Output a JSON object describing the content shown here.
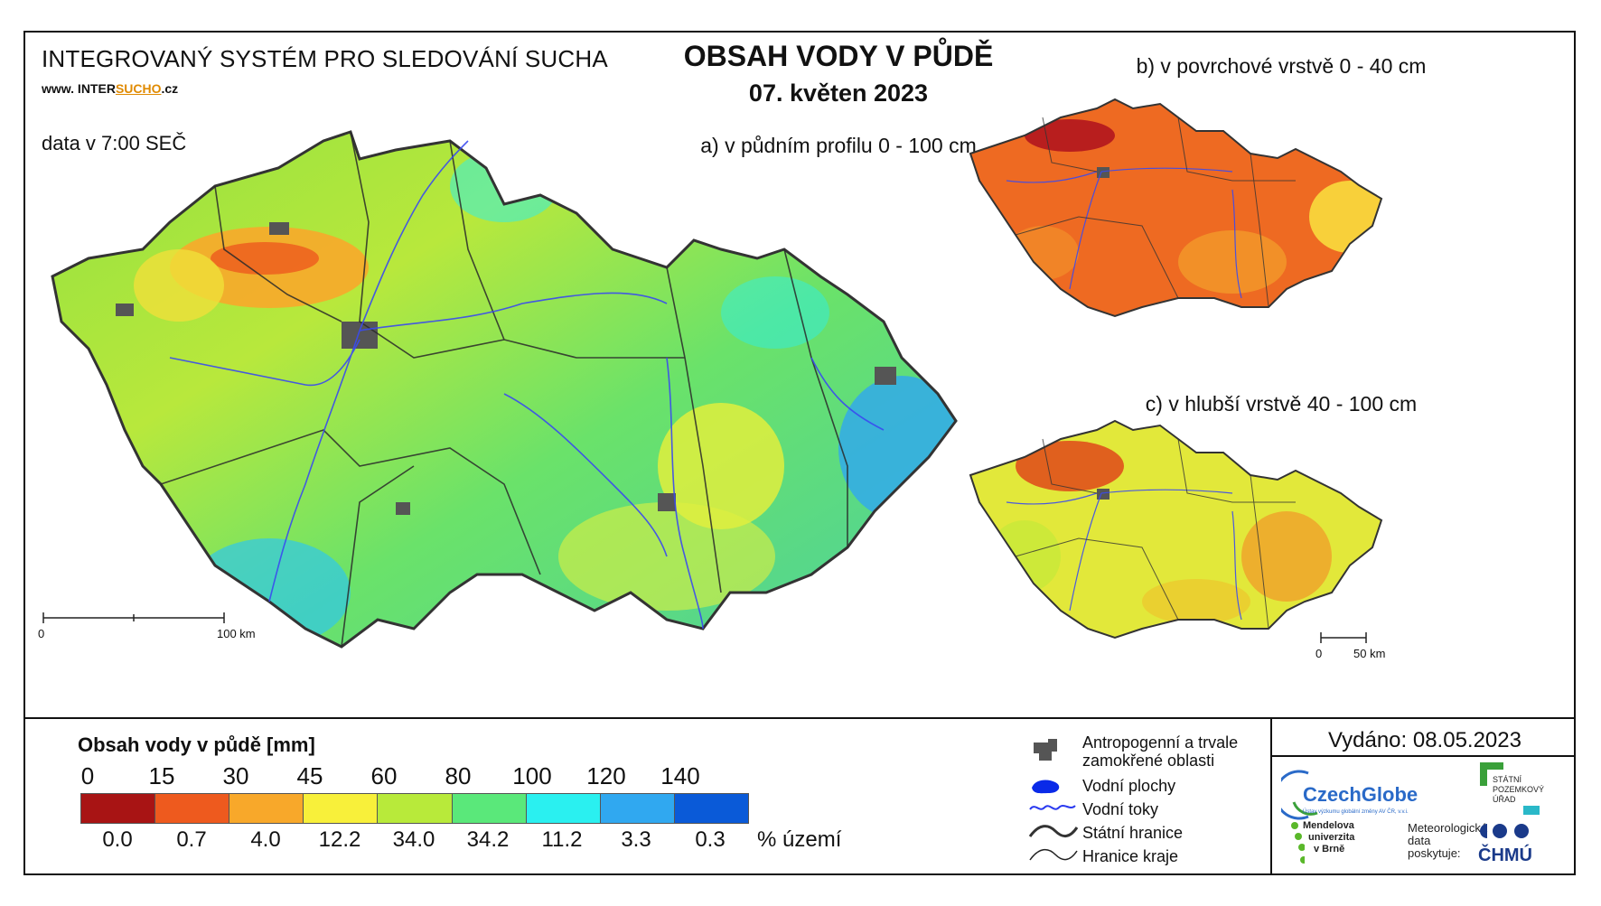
{
  "header": {
    "system_title": "INTEGROVANÝ SYSTÉM PRO SLEDOVÁNÍ SUCHA",
    "website_prefix": "www. INTER",
    "website_highlight": "SUCHO",
    "website_suffix": ".cz",
    "data_time": "data v 7:00 SEČ",
    "main_title": "OBSAH VODY V PŮDĚ",
    "date": "07. květen 2023"
  },
  "maps": {
    "a": {
      "title": "a) v půdním profilu 0 - 100 cm",
      "scale_start": "0",
      "scale_end": "100 km"
    },
    "b": {
      "title": "b) v povrchové vrstvě 0 - 40 cm"
    },
    "c": {
      "title": "c) v hlubší vrstvě 40 - 100 cm",
      "scale_start": "0",
      "scale_end": "50 km"
    }
  },
  "legend": {
    "title": "Obsah vody v půdě  [mm]",
    "ticks": [
      "0",
      "15",
      "30",
      "45",
      "60",
      "80",
      "100",
      "120",
      "140"
    ],
    "colors": [
      "#a81414",
      "#ee5a1e",
      "#f8a82a",
      "#f8f03a",
      "#b8ea3a",
      "#5ae87a",
      "#2af0f0",
      "#30a8f0",
      "#0a5ad8"
    ],
    "percentages": [
      "0.0",
      "0.7",
      "4.0",
      "12.2",
      "34.0",
      "34.2",
      "11.2",
      "3.3",
      "0.3"
    ],
    "percent_unit": "% území",
    "items": [
      {
        "label_1": "Antropogenní a trvale",
        "label_2": "zamokřené oblasti",
        "icon": "urban-area-icon"
      },
      {
        "label_1": "Vodní plochy",
        "icon": "water-body-icon"
      },
      {
        "label_1": "Vodní toky",
        "icon": "river-icon"
      },
      {
        "label_1": "Státní hranice",
        "icon": "state-border-icon"
      },
      {
        "label_1": "Hranice kraje",
        "icon": "region-border-icon"
      }
    ]
  },
  "footer": {
    "issued": "Vydáno: 08.05.2023",
    "logos": {
      "czechglobe": "CzechGlobe",
      "czechglobe_sub": "Ústav výzkumu globální změny AV ČR, v.v.i.",
      "spu_1": "STÁTNÍ",
      "spu_2": "POZEMKOVÝ",
      "spu_3": "ÚŘAD",
      "mendel_1": "Mendelova",
      "mendel_2": "univerzita",
      "mendel_3": "v Brně",
      "meteo_1": "Meteorologická",
      "meteo_2": "data",
      "meteo_3": "poskytuje:",
      "chmu": "ČHMÚ"
    }
  }
}
